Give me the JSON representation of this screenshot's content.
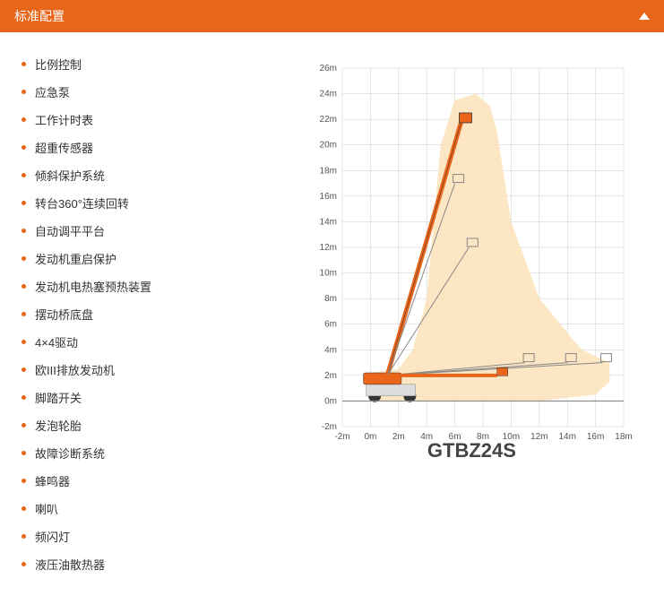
{
  "header": {
    "title": "标准配置"
  },
  "features": [
    "比例控制",
    "应急泵",
    "工作计时表",
    "超重传感器",
    "倾斜保护系统",
    "转台360°连续回转",
    "自动调平平台",
    "发动机重启保护",
    "发动机电热塞预热装置",
    "摆动桥底盘",
    "4×4驱动",
    "欧III排放发动机",
    "脚踏开关",
    "发泡轮胎",
    "故障诊断系统",
    "蜂鸣器",
    "喇叭",
    "频闪灯",
    "液压油散热器"
  ],
  "chart": {
    "model": "GTBZ24S",
    "x_range": [
      -2,
      18
    ],
    "y_range": [
      -2,
      26
    ],
    "x_ticks": [
      -2,
      0,
      2,
      4,
      6,
      8,
      10,
      12,
      14,
      16,
      18
    ],
    "y_ticks": [
      -2,
      0,
      2,
      4,
      6,
      8,
      10,
      12,
      14,
      16,
      18,
      20,
      22,
      24,
      26
    ],
    "x_unit": "m",
    "y_unit": "m",
    "colors": {
      "envelope": "#fde2b8",
      "machine": "#e8651a",
      "grid": "#cccccc",
      "text": "#555555"
    }
  }
}
